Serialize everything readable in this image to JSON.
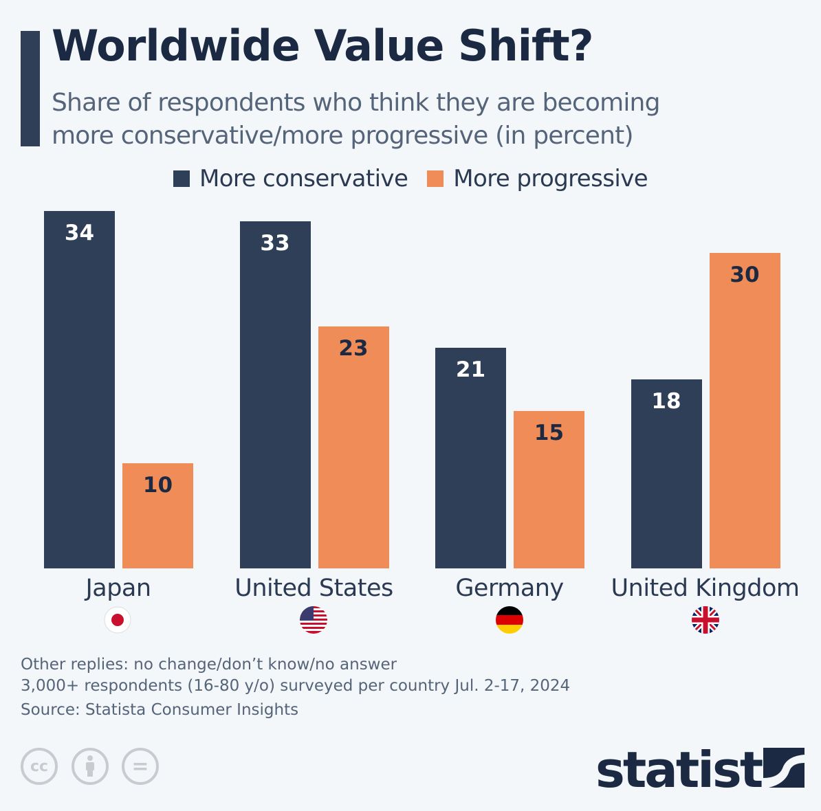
{
  "title": "Worldwide Value Shift?",
  "subtitle_line1": "Share of respondents who think they are becoming",
  "subtitle_line2": "more conservative/more progressive (in percent)",
  "colors": {
    "conservative": "#2f3f57",
    "progressive": "#ef8c58",
    "background": "#f3f7fa"
  },
  "chart_data": {
    "type": "bar",
    "categories": [
      "Japan",
      "United States",
      "Germany",
      "United Kingdom"
    ],
    "series": [
      {
        "name": "More conservative",
        "values": [
          34,
          33,
          21,
          18
        ],
        "color": "#2f3f57"
      },
      {
        "name": "More progressive",
        "values": [
          10,
          23,
          15,
          30
        ],
        "color": "#ef8c58"
      }
    ],
    "legend": "top-center",
    "grid": false,
    "ylim": [
      0,
      34
    ]
  },
  "flags": [
    "japan-flag-icon",
    "usa-flag-icon",
    "germany-flag-icon",
    "uk-flag-icon"
  ],
  "footer": {
    "note1": "Other replies: no change/don’t know/no answer",
    "note2": "3,000+ respondents (16-80 y/o) surveyed per country Jul. 2-17, 2024",
    "source": "Source: Statista Consumer Insights",
    "cc_label": "cc",
    "eq_label": "=",
    "logo": "statista"
  }
}
